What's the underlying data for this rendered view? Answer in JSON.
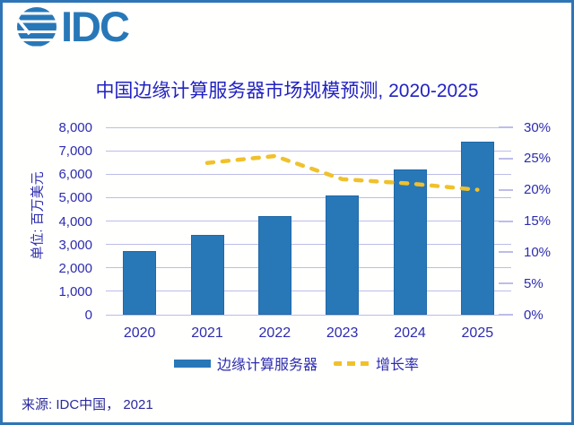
{
  "page": {
    "background": "#ffffff",
    "border_color": "#2e75b6"
  },
  "logo": {
    "wordmark": "IDC",
    "color": "#2878b8",
    "icon": "globe-stripes-icon"
  },
  "title": {
    "text": "中国边缘计算服务器市场规模预测, 2020-2025",
    "color": "#2222c2"
  },
  "chart_data": {
    "type": "bar",
    "subtype": "combo-bar-line",
    "title": "中国边缘计算服务器市场规模预测, 2020-2025",
    "categories": [
      "2020",
      "2021",
      "2022",
      "2023",
      "2024",
      "2025"
    ],
    "series": [
      {
        "name": "边缘计算服务器",
        "type": "bar",
        "axis": "left",
        "color": "#2878b8",
        "values": [
          2700,
          3400,
          4200,
          5100,
          6200,
          7400
        ]
      },
      {
        "name": "增长率",
        "type": "line",
        "line_style": "dashed",
        "axis": "right",
        "color": "#f0c12b",
        "unit": "%",
        "values": [
          null,
          24.3,
          25.4,
          21.7,
          21.0,
          20.0
        ]
      }
    ],
    "left_axis": {
      "title": "单位: 百万美元",
      "min": 0,
      "max": 8000,
      "step": 1000,
      "tick_labels": [
        "0",
        "1,000",
        "2,000",
        "3,000",
        "4,000",
        "5,000",
        "6,000",
        "7,000",
        "8,000"
      ]
    },
    "right_axis": {
      "min": 0,
      "max": 30,
      "step": 5,
      "unit": "%",
      "tick_labels": [
        "0%",
        "5%",
        "10%",
        "15%",
        "20%",
        "25%",
        "30%"
      ]
    },
    "grid": true,
    "legend_position": "bottom"
  },
  "legend": {
    "items": [
      {
        "label": "边缘计算服务器",
        "swatch": "bar",
        "color": "#2878b8"
      },
      {
        "label": "增长率",
        "swatch": "dashed-line",
        "color": "#f0c12b"
      }
    ]
  },
  "source": {
    "text": "来源: IDC中国， 2021"
  },
  "colors": {
    "bar": "#2878b8",
    "line": "#f0c12b",
    "grid": "#bdbde9",
    "axis_text": "#2c2cb0",
    "title_text": "#2222c2",
    "border": "#2e75b6"
  }
}
